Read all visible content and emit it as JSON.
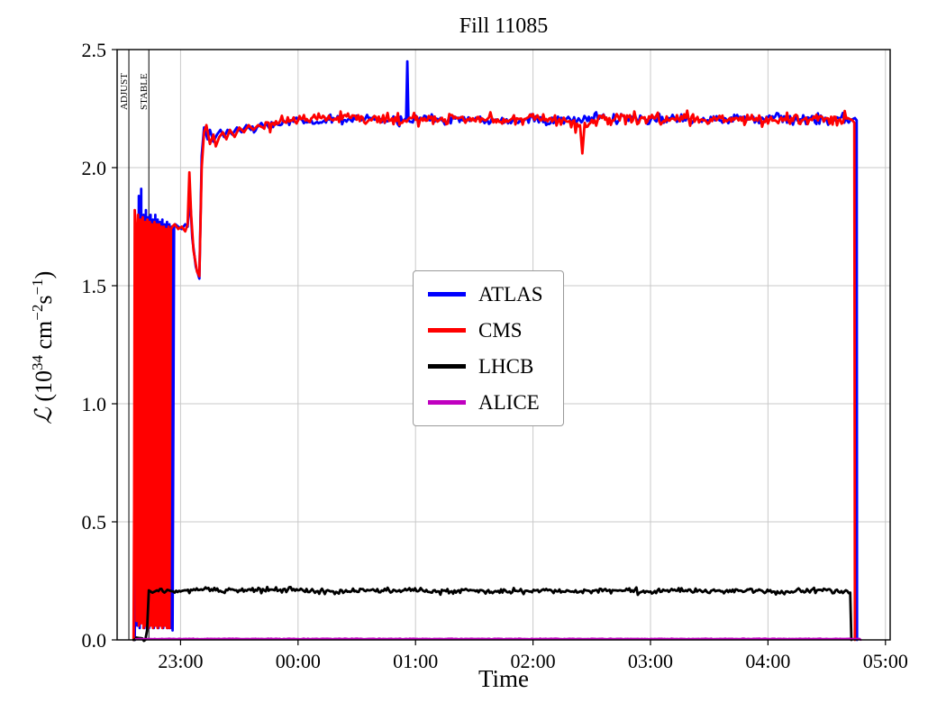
{
  "title": "Fill 11085",
  "axes": {
    "xlabel": "Time",
    "ylabel_parts": {
      "l": "ℒ",
      "open": " (10",
      "sup1": "34",
      "mid1": " cm",
      "sup2": "−2",
      "mid2": "s",
      "sup3": "−1",
      "close": ")"
    }
  },
  "chart_data": {
    "type": "line",
    "title": "Fill 11085",
    "xlabel": "Time",
    "ylabel": "L (10^34 cm^-2 s^-1)",
    "x_unit": "decimal hours, 24 = midnight 00:00",
    "xlim_hours": [
      22.46,
      29.04
    ],
    "ylim": [
      0,
      2.5
    ],
    "grid": true,
    "legend_position": "center",
    "x_ticks": [
      {
        "hour": 23,
        "label": "23:00"
      },
      {
        "hour": 24,
        "label": "00:00"
      },
      {
        "hour": 25,
        "label": "01:00"
      },
      {
        "hour": 26,
        "label": "02:00"
      },
      {
        "hour": 27,
        "label": "03:00"
      },
      {
        "hour": 28,
        "label": "04:00"
      },
      {
        "hour": 29,
        "label": "05:00"
      }
    ],
    "y_ticks": [
      {
        "v": 0.0,
        "label": "0.0"
      },
      {
        "v": 0.5,
        "label": "0.5"
      },
      {
        "v": 1.0,
        "label": "1.0"
      },
      {
        "v": 1.5,
        "label": "1.5"
      },
      {
        "v": 2.0,
        "label": "2.0"
      },
      {
        "v": 2.5,
        "label": "2.5"
      }
    ],
    "annotations": {
      "vlines": [
        {
          "x": 22.56,
          "label": "ADJUST"
        },
        {
          "x": 22.73,
          "label": "STABLE"
        }
      ]
    },
    "series": [
      {
        "name": "ATLAS",
        "color": "#0000ff",
        "width": 2.8,
        "noise": 0.012,
        "points": [
          [
            22.61,
            0.0
          ],
          [
            22.625,
            1.43
          ],
          [
            22.632,
            0.06
          ],
          [
            22.645,
            1.88
          ],
          [
            22.652,
            0.05
          ],
          [
            22.665,
            1.91
          ],
          [
            22.672,
            0.1
          ],
          [
            22.685,
            1.8
          ],
          [
            22.692,
            0.05
          ],
          [
            22.705,
            1.82
          ],
          [
            22.712,
            0.06
          ],
          [
            22.725,
            1.79
          ],
          [
            22.732,
            0.05
          ],
          [
            22.745,
            1.8
          ],
          [
            22.752,
            0.07
          ],
          [
            22.765,
            1.78
          ],
          [
            22.772,
            0.05
          ],
          [
            22.785,
            1.8
          ],
          [
            22.792,
            0.06
          ],
          [
            22.805,
            1.78
          ],
          [
            22.812,
            0.05
          ],
          [
            22.825,
            1.77
          ],
          [
            22.832,
            0.06
          ],
          [
            22.845,
            1.78
          ],
          [
            22.852,
            0.05
          ],
          [
            22.865,
            1.76
          ],
          [
            22.872,
            0.06
          ],
          [
            22.885,
            1.77
          ],
          [
            22.892,
            0.05
          ],
          [
            22.905,
            1.76
          ],
          [
            22.912,
            0.05
          ],
          [
            22.925,
            1.75
          ],
          [
            22.932,
            0.04
          ],
          [
            22.945,
            1.75
          ],
          [
            22.955,
            1.76
          ],
          [
            22.98,
            1.75
          ],
          [
            23.01,
            1.74
          ],
          [
            23.04,
            1.76
          ],
          [
            23.06,
            1.75
          ],
          [
            23.08,
            1.88
          ],
          [
            23.1,
            1.7
          ],
          [
            23.13,
            1.58
          ],
          [
            23.16,
            1.53
          ],
          [
            23.18,
            2.05
          ],
          [
            23.2,
            2.17
          ],
          [
            23.23,
            2.12
          ],
          [
            23.25,
            2.16
          ],
          [
            23.28,
            2.11
          ],
          [
            23.31,
            2.14
          ],
          [
            23.34,
            2.16
          ],
          [
            23.37,
            2.13
          ],
          [
            23.4,
            2.16
          ],
          [
            23.44,
            2.14
          ],
          [
            23.48,
            2.17
          ],
          [
            23.52,
            2.15
          ],
          [
            23.56,
            2.18
          ],
          [
            23.6,
            2.16
          ],
          [
            23.65,
            2.17
          ],
          [
            23.7,
            2.18
          ],
          [
            23.75,
            2.17
          ],
          [
            23.8,
            2.19
          ],
          [
            23.85,
            2.18
          ],
          [
            23.9,
            2.19
          ],
          [
            23.95,
            2.2
          ],
          [
            24.0,
            2.2
          ],
          [
            24.15,
            2.19
          ],
          [
            24.3,
            2.21
          ],
          [
            24.45,
            2.2
          ],
          [
            24.6,
            2.21
          ],
          [
            24.75,
            2.2
          ],
          [
            24.9,
            2.2
          ],
          [
            24.92,
            2.21
          ],
          [
            24.93,
            2.45
          ],
          [
            24.94,
            2.2
          ],
          [
            25.05,
            2.21
          ],
          [
            25.2,
            2.2
          ],
          [
            25.35,
            2.21
          ],
          [
            25.5,
            2.2
          ],
          [
            25.65,
            2.21
          ],
          [
            25.8,
            2.2
          ],
          [
            25.95,
            2.21
          ],
          [
            26.1,
            2.2
          ],
          [
            26.25,
            2.21
          ],
          [
            26.4,
            2.2
          ],
          [
            26.55,
            2.21
          ],
          [
            26.7,
            2.2
          ],
          [
            26.85,
            2.21
          ],
          [
            27.0,
            2.2
          ],
          [
            27.15,
            2.21
          ],
          [
            27.3,
            2.2
          ],
          [
            27.45,
            2.21
          ],
          [
            27.6,
            2.2
          ],
          [
            27.75,
            2.21
          ],
          [
            27.9,
            2.2
          ],
          [
            28.05,
            2.21
          ],
          [
            28.2,
            2.2
          ],
          [
            28.35,
            2.21
          ],
          [
            28.5,
            2.2
          ],
          [
            28.6,
            2.21
          ],
          [
            28.7,
            2.2
          ],
          [
            28.74,
            2.21
          ],
          [
            28.755,
            2.2
          ],
          [
            28.758,
            0.0
          ]
        ]
      },
      {
        "name": "CMS",
        "color": "#ff0000",
        "width": 2.8,
        "noise": 0.015,
        "points": [
          [
            22.6,
            0.0
          ],
          [
            22.605,
            0.57
          ],
          [
            22.61,
            1.82
          ],
          [
            22.618,
            1.75
          ],
          [
            22.625,
            0.08
          ],
          [
            22.638,
            1.8
          ],
          [
            22.645,
            0.06
          ],
          [
            22.658,
            1.78
          ],
          [
            22.665,
            0.07
          ],
          [
            22.678,
            1.79
          ],
          [
            22.685,
            0.05
          ],
          [
            22.698,
            1.77
          ],
          [
            22.705,
            0.06
          ],
          [
            22.718,
            1.78
          ],
          [
            22.725,
            0.05
          ],
          [
            22.738,
            1.77
          ],
          [
            22.745,
            0.06
          ],
          [
            22.758,
            1.76
          ],
          [
            22.765,
            0.05
          ],
          [
            22.778,
            1.77
          ],
          [
            22.785,
            0.06
          ],
          [
            22.798,
            1.76
          ],
          [
            22.805,
            0.05
          ],
          [
            22.818,
            1.76
          ],
          [
            22.825,
            0.06
          ],
          [
            22.838,
            1.75
          ],
          [
            22.845,
            0.05
          ],
          [
            22.858,
            1.75
          ],
          [
            22.865,
            0.06
          ],
          [
            22.878,
            1.74
          ],
          [
            22.885,
            0.05
          ],
          [
            22.898,
            1.75
          ],
          [
            22.905,
            0.05
          ],
          [
            22.918,
            1.74
          ],
          [
            22.93,
            1.75
          ],
          [
            22.95,
            1.76
          ],
          [
            22.98,
            1.74
          ],
          [
            23.01,
            1.75
          ],
          [
            23.04,
            1.73
          ],
          [
            23.06,
            1.76
          ],
          [
            23.075,
            1.98
          ],
          [
            23.09,
            1.8
          ],
          [
            23.11,
            1.65
          ],
          [
            23.14,
            1.56
          ],
          [
            23.16,
            1.54
          ],
          [
            23.18,
            2.0
          ],
          [
            23.2,
            2.15
          ],
          [
            23.22,
            2.18
          ],
          [
            23.25,
            2.1
          ],
          [
            23.28,
            2.14
          ],
          [
            23.3,
            2.09
          ],
          [
            23.33,
            2.13
          ],
          [
            23.36,
            2.15
          ],
          [
            23.39,
            2.12
          ],
          [
            23.42,
            2.16
          ],
          [
            23.46,
            2.13
          ],
          [
            23.5,
            2.17
          ],
          [
            23.54,
            2.15
          ],
          [
            23.58,
            2.18
          ],
          [
            23.62,
            2.16
          ],
          [
            23.66,
            2.18
          ],
          [
            23.7,
            2.17
          ],
          [
            23.75,
            2.19
          ],
          [
            23.8,
            2.18
          ],
          [
            23.85,
            2.2
          ],
          [
            23.9,
            2.19
          ],
          [
            23.95,
            2.2
          ],
          [
            24.0,
            2.2
          ],
          [
            24.15,
            2.21
          ],
          [
            24.3,
            2.2
          ],
          [
            24.45,
            2.21
          ],
          [
            24.6,
            2.2
          ],
          [
            24.75,
            2.21
          ],
          [
            24.9,
            2.2
          ],
          [
            25.05,
            2.21
          ],
          [
            25.2,
            2.2
          ],
          [
            25.35,
            2.21
          ],
          [
            25.5,
            2.2
          ],
          [
            25.65,
            2.21
          ],
          [
            25.8,
            2.2
          ],
          [
            25.95,
            2.21
          ],
          [
            26.1,
            2.2
          ],
          [
            26.25,
            2.2
          ],
          [
            26.4,
            2.18
          ],
          [
            26.42,
            2.06
          ],
          [
            26.44,
            2.19
          ],
          [
            26.55,
            2.2
          ],
          [
            26.7,
            2.21
          ],
          [
            26.85,
            2.2
          ],
          [
            27.0,
            2.21
          ],
          [
            27.15,
            2.2
          ],
          [
            27.3,
            2.21
          ],
          [
            27.45,
            2.2
          ],
          [
            27.6,
            2.21
          ],
          [
            27.75,
            2.2
          ],
          [
            27.9,
            2.21
          ],
          [
            28.05,
            2.2
          ],
          [
            28.2,
            2.21
          ],
          [
            28.35,
            2.2
          ],
          [
            28.5,
            2.21
          ],
          [
            28.6,
            2.2
          ],
          [
            28.68,
            2.21
          ],
          [
            28.72,
            2.2
          ],
          [
            28.735,
            2.19
          ],
          [
            28.74,
            0.0
          ]
        ]
      },
      {
        "name": "LHCB",
        "color": "#000000",
        "width": 2.8,
        "noise": 0.006,
        "points": [
          [
            22.6,
            0.0
          ],
          [
            22.7,
            0.0
          ],
          [
            22.715,
            0.04
          ],
          [
            22.73,
            0.21
          ],
          [
            22.76,
            0.2
          ],
          [
            22.8,
            0.21
          ],
          [
            22.85,
            0.205
          ],
          [
            22.9,
            0.21
          ],
          [
            22.95,
            0.2
          ],
          [
            23.0,
            0.205
          ],
          [
            23.1,
            0.21
          ],
          [
            23.2,
            0.215
          ],
          [
            23.3,
            0.21
          ],
          [
            23.4,
            0.21
          ],
          [
            23.6,
            0.21
          ],
          [
            23.8,
            0.21
          ],
          [
            24.0,
            0.21
          ],
          [
            24.3,
            0.205
          ],
          [
            24.6,
            0.21
          ],
          [
            24.9,
            0.21
          ],
          [
            25.2,
            0.205
          ],
          [
            25.5,
            0.21
          ],
          [
            25.8,
            0.205
          ],
          [
            26.1,
            0.21
          ],
          [
            26.4,
            0.205
          ],
          [
            26.7,
            0.21
          ],
          [
            27.0,
            0.205
          ],
          [
            27.3,
            0.21
          ],
          [
            27.6,
            0.205
          ],
          [
            27.9,
            0.21
          ],
          [
            28.2,
            0.205
          ],
          [
            28.5,
            0.21
          ],
          [
            28.65,
            0.205
          ],
          [
            28.7,
            0.2
          ],
          [
            28.71,
            0.0
          ]
        ]
      },
      {
        "name": "ALICE",
        "color": "#c000c0",
        "width": 2.2,
        "noise": 0.0008,
        "points": [
          [
            22.62,
            0.004
          ],
          [
            23.0,
            0.005
          ],
          [
            24.0,
            0.005
          ],
          [
            25.0,
            0.005
          ],
          [
            26.0,
            0.005
          ],
          [
            27.0,
            0.005
          ],
          [
            28.0,
            0.005
          ],
          [
            28.78,
            0.005
          ],
          [
            28.79,
            0.0
          ]
        ]
      }
    ]
  }
}
